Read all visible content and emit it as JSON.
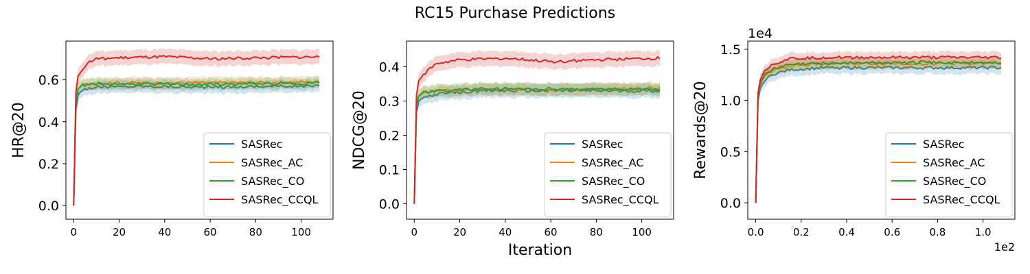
{
  "figure": {
    "title": "RC15 Purchase Predictions"
  },
  "legend_entries": [
    "SASRec",
    "SASRec_AC",
    "SASRec_CO",
    "SASRec_CCQL"
  ],
  "colors": {
    "SASRec": "#1f77b4",
    "SASRec_AC": "#ff7f0e",
    "SASRec_CO": "#2ca02c",
    "SASRec_CCQL": "#d62728"
  },
  "chart_data": [
    {
      "type": "line",
      "title": "",
      "xlabel": "",
      "ylabel": "HR@20",
      "xlim": [
        -3.4,
        114
      ],
      "ylim": [
        -0.065,
        0.785
      ],
      "x_ticks": [
        0,
        20,
        40,
        60,
        80,
        100
      ],
      "x_tick_labels": [
        "0",
        "20",
        "40",
        "60",
        "80",
        "100"
      ],
      "y_ticks": [
        0.0,
        0.2,
        0.4,
        0.6
      ],
      "y_tick_labels": [
        "0.0",
        "0.2",
        "0.4",
        "0.6"
      ],
      "grid": false,
      "legend_position": "lower right",
      "series": [
        {
          "name": "SASRec",
          "color": "#1f77b4",
          "band": 0.03,
          "anchors": [
            [
              0,
              0.0
            ],
            [
              0.5,
              0.12
            ],
            [
              1,
              0.46
            ],
            [
              2,
              0.53
            ],
            [
              4,
              0.555
            ],
            [
              10,
              0.565
            ],
            [
              30,
              0.57
            ],
            [
              60,
              0.565
            ],
            [
              90,
              0.57
            ],
            [
              108,
              0.57
            ]
          ]
        },
        {
          "name": "SASRec_AC",
          "color": "#ff7f0e",
          "band": 0.028,
          "anchors": [
            [
              0,
              0.0
            ],
            [
              0.5,
              0.14
            ],
            [
              1,
              0.5
            ],
            [
              2,
              0.56
            ],
            [
              4,
              0.575
            ],
            [
              10,
              0.585
            ],
            [
              30,
              0.585
            ],
            [
              60,
              0.585
            ],
            [
              90,
              0.588
            ],
            [
              108,
              0.59
            ]
          ]
        },
        {
          "name": "SASRec_CO",
          "color": "#2ca02c",
          "band": 0.028,
          "anchors": [
            [
              0,
              0.0
            ],
            [
              0.5,
              0.14
            ],
            [
              1,
              0.5
            ],
            [
              2,
              0.56
            ],
            [
              4,
              0.575
            ],
            [
              10,
              0.58
            ],
            [
              30,
              0.58
            ],
            [
              60,
              0.578
            ],
            [
              90,
              0.582
            ],
            [
              108,
              0.585
            ]
          ]
        },
        {
          "name": "SASRec_CCQL",
          "color": "#d62728",
          "band": 0.035,
          "anchors": [
            [
              0,
              0.0
            ],
            [
              0.5,
              0.18
            ],
            [
              1,
              0.55
            ],
            [
              2,
              0.62
            ],
            [
              4,
              0.65
            ],
            [
              6,
              0.68
            ],
            [
              10,
              0.7
            ],
            [
              20,
              0.705
            ],
            [
              40,
              0.71
            ],
            [
              60,
              0.7
            ],
            [
              80,
              0.705
            ],
            [
              108,
              0.71
            ]
          ]
        }
      ]
    },
    {
      "type": "line",
      "title": "",
      "xlabel": "Iteration",
      "ylabel": "NDCG@20",
      "xlim": [
        -3.4,
        114
      ],
      "ylim": [
        -0.045,
        0.475
      ],
      "x_ticks": [
        0,
        20,
        40,
        60,
        80,
        100
      ],
      "x_tick_labels": [
        "0",
        "20",
        "40",
        "60",
        "80",
        "100"
      ],
      "y_ticks": [
        0.0,
        0.1,
        0.2,
        0.3,
        0.4
      ],
      "y_tick_labels": [
        "0.0",
        "0.1",
        "0.2",
        "0.3",
        "0.4"
      ],
      "grid": false,
      "legend_position": "lower right",
      "series": [
        {
          "name": "SASRec",
          "color": "#1f77b4",
          "band": 0.02,
          "anchors": [
            [
              0,
              0.0
            ],
            [
              0.5,
              0.08
            ],
            [
              1,
              0.27
            ],
            [
              2,
              0.3
            ],
            [
              4,
              0.31
            ],
            [
              10,
              0.32
            ],
            [
              30,
              0.33
            ],
            [
              60,
              0.33
            ],
            [
              90,
              0.33
            ],
            [
              108,
              0.33
            ]
          ]
        },
        {
          "name": "SASRec_AC",
          "color": "#ff7f0e",
          "band": 0.018,
          "anchors": [
            [
              0,
              0.0
            ],
            [
              0.5,
              0.09
            ],
            [
              1,
              0.29
            ],
            [
              2,
              0.315
            ],
            [
              4,
              0.325
            ],
            [
              10,
              0.33
            ],
            [
              30,
              0.335
            ],
            [
              60,
              0.335
            ],
            [
              90,
              0.335
            ],
            [
              108,
              0.34
            ]
          ]
        },
        {
          "name": "SASRec_CO",
          "color": "#2ca02c",
          "band": 0.018,
          "anchors": [
            [
              0,
              0.0
            ],
            [
              0.5,
              0.09
            ],
            [
              1,
              0.29
            ],
            [
              2,
              0.315
            ],
            [
              4,
              0.325
            ],
            [
              10,
              0.33
            ],
            [
              30,
              0.335
            ],
            [
              60,
              0.335
            ],
            [
              90,
              0.335
            ],
            [
              108,
              0.335
            ]
          ]
        },
        {
          "name": "SASRec_CCQL",
          "color": "#d62728",
          "band": 0.022,
          "anchors": [
            [
              0,
              0.0
            ],
            [
              0.5,
              0.1
            ],
            [
              1,
              0.32
            ],
            [
              2,
              0.36
            ],
            [
              4,
              0.375
            ],
            [
              6,
              0.39
            ],
            [
              10,
              0.41
            ],
            [
              20,
              0.42
            ],
            [
              40,
              0.425
            ],
            [
              60,
              0.415
            ],
            [
              80,
              0.42
            ],
            [
              108,
              0.425
            ]
          ]
        }
      ]
    },
    {
      "type": "line",
      "title": "",
      "xlabel": "",
      "ylabel": "Rewards@20",
      "offset_label_y": "1e4",
      "offset_label_x": "1e2",
      "xlim": [
        -0.035,
        1.14
      ],
      "ylim": [
        -0.16,
        1.58
      ],
      "x_ticks": [
        0.0,
        0.2,
        0.4,
        0.6,
        0.8,
        1.0
      ],
      "x_tick_labels": [
        "0.0",
        "0.2",
        "0.4",
        "0.6",
        "0.8",
        "1.0"
      ],
      "y_ticks": [
        0.0,
        0.5,
        1.0,
        1.5
      ],
      "y_tick_labels": [
        "0.0",
        "0.5",
        "1.0",
        "1.5"
      ],
      "grid": false,
      "legend_position": "lower right",
      "series": [
        {
          "name": "SASRec",
          "color": "#1f77b4",
          "band": 0.06,
          "anchors": [
            [
              0,
              0.0
            ],
            [
              0.005,
              0.6
            ],
            [
              0.01,
              1.0
            ],
            [
              0.02,
              1.12
            ],
            [
              0.04,
              1.2
            ],
            [
              0.08,
              1.26
            ],
            [
              0.15,
              1.3
            ],
            [
              0.3,
              1.32
            ],
            [
              0.6,
              1.32
            ],
            [
              0.9,
              1.32
            ],
            [
              1.08,
              1.32
            ]
          ]
        },
        {
          "name": "SASRec_AC",
          "color": "#ff7f0e",
          "band": 0.055,
          "anchors": [
            [
              0,
              0.0
            ],
            [
              0.005,
              0.62
            ],
            [
              0.01,
              1.03
            ],
            [
              0.02,
              1.16
            ],
            [
              0.04,
              1.24
            ],
            [
              0.08,
              1.3
            ],
            [
              0.15,
              1.34
            ],
            [
              0.3,
              1.36
            ],
            [
              0.6,
              1.36
            ],
            [
              0.9,
              1.36
            ],
            [
              1.08,
              1.36
            ]
          ]
        },
        {
          "name": "SASRec_CO",
          "color": "#2ca02c",
          "band": 0.055,
          "anchors": [
            [
              0,
              0.0
            ],
            [
              0.005,
              0.62
            ],
            [
              0.01,
              1.03
            ],
            [
              0.02,
              1.17
            ],
            [
              0.04,
              1.25
            ],
            [
              0.08,
              1.31
            ],
            [
              0.15,
              1.35
            ],
            [
              0.3,
              1.365
            ],
            [
              0.6,
              1.37
            ],
            [
              0.9,
              1.37
            ],
            [
              1.08,
              1.37
            ]
          ]
        },
        {
          "name": "SASRec_CCQL",
          "color": "#d62728",
          "band": 0.055,
          "anchors": [
            [
              0,
              0.0
            ],
            [
              0.005,
              0.65
            ],
            [
              0.01,
              1.08
            ],
            [
              0.02,
              1.2
            ],
            [
              0.04,
              1.3
            ],
            [
              0.08,
              1.36
            ],
            [
              0.15,
              1.41
            ],
            [
              0.3,
              1.42
            ],
            [
              0.6,
              1.42
            ],
            [
              0.9,
              1.42
            ],
            [
              1.08,
              1.42
            ]
          ]
        }
      ]
    }
  ]
}
